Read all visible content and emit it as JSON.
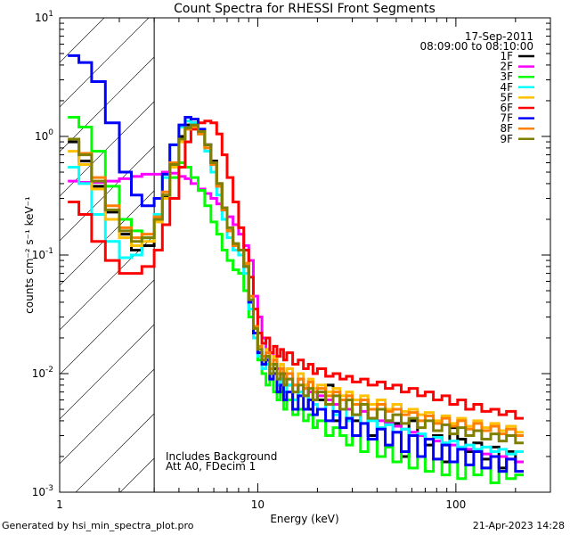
{
  "chart_data": {
    "type": "line",
    "title": "Count Spectra for RHESSI Front Segments",
    "xlabel": "Energy (keV)",
    "ylabel": "counts cm⁻² s⁻¹ keV⁻¹",
    "xscale": "log",
    "yscale": "log",
    "xlim": [
      1,
      300
    ],
    "ylim": [
      0.001,
      10
    ],
    "xticks": [
      {
        "value": 1,
        "label": "1"
      },
      {
        "value": 10,
        "label": "10"
      },
      {
        "value": 100,
        "label": "100"
      }
    ],
    "yticks": [
      {
        "value": 0.001,
        "base": "10",
        "exp": "-3"
      },
      {
        "value": 0.01,
        "base": "10",
        "exp": "-2"
      },
      {
        "value": 0.1,
        "base": "10",
        "exp": "-1"
      },
      {
        "value": 1,
        "base": "10",
        "exp": "0"
      },
      {
        "value": 10,
        "base": "10",
        "exp": "1"
      }
    ],
    "date_text": "17-Sep-2011",
    "time_text": "08:09:00 to 08:10:00",
    "annotations": [
      "Includes Background",
      "Att A0, FDecim 1"
    ],
    "hatched_region_below_keV": 3,
    "energy_edges": [
      1.1,
      1.25,
      1.45,
      1.7,
      2.0,
      2.3,
      2.6,
      3.0,
      3.3,
      3.6,
      4.0,
      4.3,
      4.6,
      5.0,
      5.4,
      5.8,
      6.2,
      6.6,
      7.0,
      7.5,
      8.0,
      8.5,
      9.0,
      9.5,
      10.0,
      10.5,
      11.0,
      11.5,
      12.0,
      12.5,
      13.0,
      13.5,
      14.0,
      15.0,
      16.0,
      17.0,
      18.0,
      19.0,
      20.0,
      22.0,
      24.0,
      26.0,
      28.0,
      30.0,
      33.0,
      36.0,
      40.0,
      44.0,
      48.0,
      53.0,
      58.0,
      64.0,
      70.0,
      77.0,
      85.0,
      93.0,
      102.0,
      112.0,
      123.0,
      135.0,
      150.0,
      165.0,
      180.0,
      200.0,
      220.0,
      245.0,
      270.0,
      300.0
    ],
    "series": [
      {
        "name": "1F",
        "color": "#000000",
        "values": [
          0.9,
          0.62,
          0.38,
          0.23,
          0.15,
          0.11,
          0.12,
          0.2,
          0.31,
          0.6,
          1.0,
          1.25,
          1.3,
          1.1,
          0.85,
          0.62,
          0.4,
          0.25,
          0.16,
          0.12,
          0.11,
          0.08,
          0.04,
          0.022,
          0.015,
          0.012,
          0.014,
          0.009,
          0.011,
          0.007,
          0.009,
          0.01,
          0.008,
          0.006,
          0.009,
          0.008,
          0.005,
          0.007,
          0.006,
          0.008,
          0.004,
          0.006,
          0.005,
          0.004,
          0.006,
          0.003,
          0.005,
          0.004,
          0.0038,
          0.002,
          0.004,
          0.003,
          0.0025,
          0.003,
          0.0018,
          0.0035,
          0.0028,
          0.0022,
          0.0026,
          0.0019,
          0.0024,
          0.0016,
          0.0022,
          0.0018
        ]
      },
      {
        "name": "2F",
        "color": "#ff00ff",
        "values": [
          0.42,
          0.41,
          0.41,
          0.42,
          0.44,
          0.46,
          0.48,
          0.48,
          0.5,
          0.49,
          0.46,
          0.44,
          0.4,
          0.36,
          0.33,
          0.3,
          0.27,
          0.25,
          0.21,
          0.18,
          0.15,
          0.12,
          0.09,
          0.045,
          0.03,
          0.02,
          0.016,
          0.015,
          0.012,
          0.011,
          0.01,
          0.009,
          0.009,
          0.008,
          0.007,
          0.0075,
          0.007,
          0.006,
          0.0065,
          0.006,
          0.0055,
          0.005,
          0.005,
          0.0045,
          0.0048,
          0.0042,
          0.004,
          0.0038,
          0.0036,
          0.0034,
          0.0032,
          0.003,
          0.0028,
          0.0027,
          0.0026,
          0.0025,
          0.0024,
          0.0023,
          0.0022,
          0.0021,
          0.002,
          0.002,
          0.0019,
          0.0018
        ]
      },
      {
        "name": "3F",
        "color": "#00ff00",
        "values": [
          1.45,
          1.2,
          0.75,
          0.38,
          0.2,
          0.16,
          0.14,
          0.2,
          0.3,
          0.45,
          0.6,
          0.55,
          0.45,
          0.35,
          0.26,
          0.19,
          0.15,
          0.11,
          0.09,
          0.075,
          0.07,
          0.05,
          0.03,
          0.02,
          0.013,
          0.01,
          0.008,
          0.009,
          0.007,
          0.006,
          0.007,
          0.005,
          0.006,
          0.0045,
          0.005,
          0.004,
          0.0045,
          0.0035,
          0.004,
          0.003,
          0.0035,
          0.003,
          0.0025,
          0.003,
          0.0022,
          0.0028,
          0.002,
          0.0024,
          0.0018,
          0.0022,
          0.0016,
          0.002,
          0.0015,
          0.0019,
          0.0014,
          0.0018,
          0.0013,
          0.0017,
          0.0014,
          0.0016,
          0.0012,
          0.0015,
          0.0013,
          0.0014
        ]
      },
      {
        "name": "4F",
        "color": "#00ffff",
        "values": [
          0.55,
          0.4,
          0.22,
          0.13,
          0.095,
          0.1,
          0.14,
          0.22,
          0.45,
          0.85,
          1.2,
          1.35,
          1.3,
          1.05,
          0.75,
          0.5,
          0.32,
          0.2,
          0.14,
          0.11,
          0.1,
          0.07,
          0.035,
          0.02,
          0.014,
          0.011,
          0.012,
          0.009,
          0.01,
          0.008,
          0.009,
          0.007,
          0.008,
          0.006,
          0.007,
          0.0065,
          0.006,
          0.0055,
          0.005,
          0.0055,
          0.0045,
          0.005,
          0.004,
          0.0045,
          0.0038,
          0.004,
          0.0035,
          0.0037,
          0.0032,
          0.0034,
          0.003,
          0.0031,
          0.0028,
          0.0029,
          0.0026,
          0.0027,
          0.0024,
          0.0025,
          0.0023,
          0.0024,
          0.0022,
          0.0023,
          0.0021,
          0.0022
        ]
      },
      {
        "name": "5F",
        "color": "#ffc000",
        "values": [
          0.75,
          0.58,
          0.36,
          0.2,
          0.14,
          0.12,
          0.13,
          0.19,
          0.3,
          0.55,
          0.9,
          1.15,
          1.2,
          1.05,
          0.8,
          0.58,
          0.38,
          0.24,
          0.16,
          0.12,
          0.11,
          0.085,
          0.045,
          0.025,
          0.017,
          0.014,
          0.016,
          0.012,
          0.014,
          0.01,
          0.012,
          0.009,
          0.011,
          0.008,
          0.01,
          0.008,
          0.009,
          0.0075,
          0.008,
          0.007,
          0.0075,
          0.0065,
          0.007,
          0.006,
          0.0065,
          0.0055,
          0.006,
          0.005,
          0.0055,
          0.0048,
          0.005,
          0.0045,
          0.0047,
          0.004,
          0.0044,
          0.0038,
          0.0042,
          0.0036,
          0.004,
          0.0035,
          0.0038,
          0.0033,
          0.0036,
          0.0032
        ]
      },
      {
        "name": "6F",
        "color": "#ff0000",
        "values": [
          0.28,
          0.22,
          0.13,
          0.09,
          0.07,
          0.07,
          0.08,
          0.11,
          0.18,
          0.3,
          0.55,
          0.9,
          1.15,
          1.3,
          1.35,
          1.3,
          1.05,
          0.7,
          0.45,
          0.28,
          0.17,
          0.11,
          0.065,
          0.035,
          0.022,
          0.018,
          0.02,
          0.015,
          0.017,
          0.014,
          0.016,
          0.013,
          0.015,
          0.012,
          0.013,
          0.011,
          0.012,
          0.01,
          0.011,
          0.0095,
          0.01,
          0.009,
          0.0095,
          0.0085,
          0.009,
          0.008,
          0.0085,
          0.0075,
          0.008,
          0.007,
          0.0075,
          0.0065,
          0.007,
          0.006,
          0.0065,
          0.0055,
          0.006,
          0.005,
          0.0055,
          0.0048,
          0.005,
          0.0045,
          0.0048,
          0.0042
        ]
      },
      {
        "name": "7F",
        "color": "#0000ff",
        "values": [
          4.8,
          4.2,
          2.9,
          1.3,
          0.5,
          0.32,
          0.26,
          0.3,
          0.48,
          0.85,
          1.25,
          1.45,
          1.4,
          1.15,
          0.85,
          0.6,
          0.38,
          0.24,
          0.16,
          0.12,
          0.11,
          0.08,
          0.04,
          0.022,
          0.015,
          0.012,
          0.013,
          0.009,
          0.01,
          0.007,
          0.008,
          0.006,
          0.007,
          0.005,
          0.0065,
          0.005,
          0.006,
          0.0045,
          0.005,
          0.004,
          0.0048,
          0.0035,
          0.0042,
          0.003,
          0.0038,
          0.0028,
          0.0034,
          0.0025,
          0.0032,
          0.0022,
          0.003,
          0.002,
          0.0028,
          0.0019,
          0.0025,
          0.0018,
          0.0023,
          0.0017,
          0.0022,
          0.0016,
          0.002,
          0.0015,
          0.0019,
          0.0015
        ]
      },
      {
        "name": "8F",
        "color": "#ff8000",
        "values": [
          0.95,
          0.72,
          0.45,
          0.26,
          0.17,
          0.14,
          0.15,
          0.21,
          0.34,
          0.6,
          0.95,
          1.15,
          1.2,
          1.05,
          0.8,
          0.58,
          0.38,
          0.24,
          0.16,
          0.12,
          0.11,
          0.085,
          0.045,
          0.025,
          0.017,
          0.014,
          0.015,
          0.011,
          0.013,
          0.01,
          0.011,
          0.009,
          0.01,
          0.008,
          0.009,
          0.0075,
          0.0085,
          0.007,
          0.0075,
          0.0065,
          0.007,
          0.006,
          0.0065,
          0.0055,
          0.006,
          0.005,
          0.0055,
          0.0048,
          0.005,
          0.0045,
          0.0047,
          0.004,
          0.0044,
          0.0038,
          0.0042,
          0.0036,
          0.004,
          0.0034,
          0.0038,
          0.0033,
          0.0036,
          0.0031,
          0.0034,
          0.003
        ]
      },
      {
        "name": "9F",
        "color": "#808000",
        "values": [
          0.95,
          0.7,
          0.42,
          0.24,
          0.16,
          0.13,
          0.14,
          0.2,
          0.32,
          0.58,
          0.95,
          1.18,
          1.25,
          1.1,
          0.85,
          0.6,
          0.4,
          0.25,
          0.17,
          0.125,
          0.11,
          0.08,
          0.042,
          0.024,
          0.016,
          0.013,
          0.014,
          0.01,
          0.012,
          0.009,
          0.01,
          0.008,
          0.009,
          0.007,
          0.008,
          0.0065,
          0.0075,
          0.006,
          0.007,
          0.0055,
          0.0065,
          0.005,
          0.006,
          0.0045,
          0.0055,
          0.0042,
          0.005,
          0.004,
          0.0045,
          0.0038,
          0.0042,
          0.0035,
          0.004,
          0.0033,
          0.0037,
          0.0031,
          0.0035,
          0.003,
          0.0033,
          0.0028,
          0.0031,
          0.0027,
          0.003,
          0.0026
        ]
      }
    ]
  },
  "footer": {
    "left": "Generated by hsi_min_spectra_plot.pro",
    "right": "21-Apr-2023 14:28"
  }
}
